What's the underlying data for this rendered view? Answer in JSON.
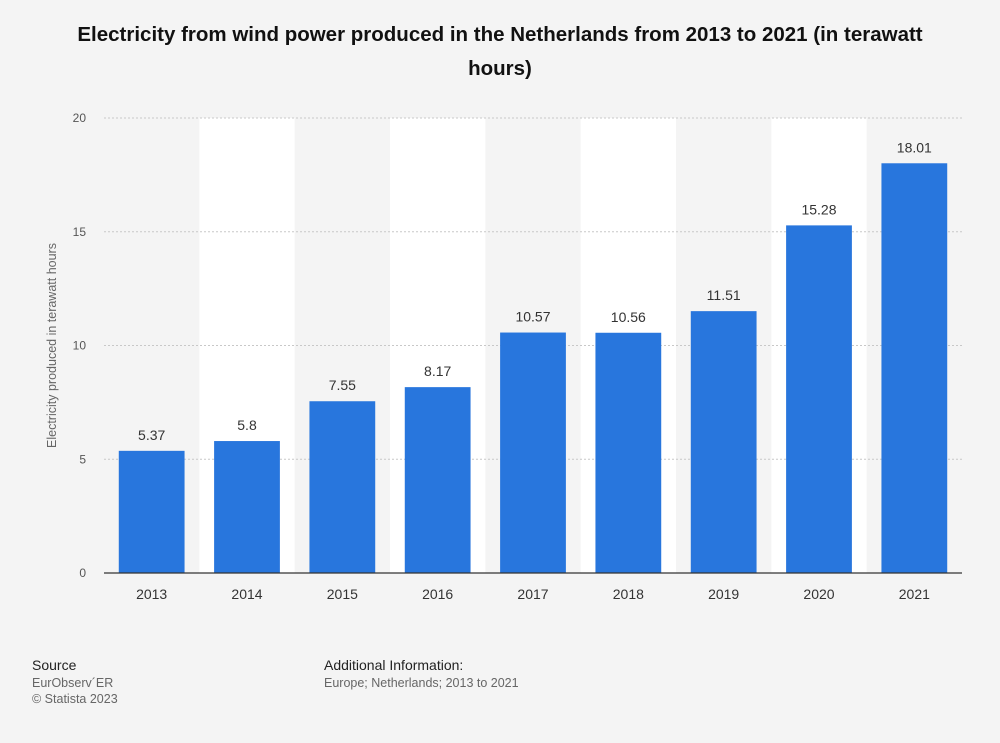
{
  "chart_data": {
    "type": "bar",
    "title": "Electricity from wind power produced in the Netherlands from 2013 to 2021 (in terawatt hours)",
    "ylabel": "Electricity produced in terawatt hours",
    "xlabel": "",
    "categories": [
      "2013",
      "2014",
      "2015",
      "2016",
      "2017",
      "2018",
      "2019",
      "2020",
      "2021"
    ],
    "values": [
      5.37,
      5.8,
      7.55,
      8.17,
      10.57,
      10.56,
      11.51,
      15.28,
      18.01
    ],
    "ylim": [
      0,
      20
    ],
    "yticks": [
      0,
      5,
      10,
      15,
      20
    ],
    "grid": true,
    "colors": {
      "bar": "#2876dd",
      "band": "#ffffff",
      "grid": "#c8c8c8",
      "axis": "#333333"
    }
  },
  "footer": {
    "source_heading": "Source",
    "source_line1": "EurObserv´ER",
    "source_line2": "© Statista 2023",
    "info_heading": "Additional Information:",
    "info_line1": "Europe; Netherlands; 2013 to 2021"
  }
}
